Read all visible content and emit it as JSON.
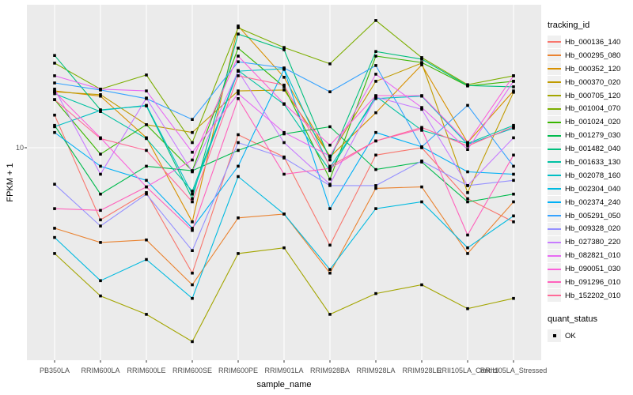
{
  "figure": {
    "y_axis": {
      "title": "FPKM + 1",
      "tick_label": "10"
    },
    "x_axis": {
      "title": "sample_name"
    },
    "legend": {
      "tracking_title": "tracking_id",
      "quant_title": "quant_status",
      "quant_items": [
        {
          "label": "OK",
          "marker": "black-square"
        }
      ]
    }
  },
  "chart_data": {
    "type": "line",
    "title": "",
    "xlabel": "sample_name",
    "ylabel": "FPKM + 1",
    "y_scale": "log10",
    "ylim": [
      1.05,
      50
    ],
    "y_ticks": [
      10
    ],
    "grid": "white major gridlines on gray panel",
    "legend_position": "right",
    "point_marker": {
      "shape": "square",
      "color": "#000000",
      "legend_label": "OK"
    },
    "panel_color": "#EBEBEB",
    "categories": [
      "PB350LA",
      "RRIM600LA",
      "RRIM600LE",
      "RRIM600SE",
      "RRIM600PE",
      "RRIM901LA",
      "RRIM928BA",
      "RRIM928LA",
      "RRIM928LE",
      "RRII105LA_Control",
      "RRII105LA_Stressed"
    ],
    "series": [
      {
        "name": "Hb_000136_140",
        "color": "#F8766D",
        "values": [
          14.5,
          4.4,
          6.0,
          2.4,
          11.6,
          9.0,
          3.3,
          9.2,
          10.0,
          5.6,
          4.3
        ]
      },
      {
        "name": "Hb_000295_080",
        "color": "#EA8331",
        "values": [
          4.0,
          3.4,
          3.5,
          2.1,
          4.5,
          4.7,
          2.4,
          6.3,
          6.4,
          3.0,
          5.4
        ]
      },
      {
        "name": "Hb_000352_120",
        "color": "#D89000",
        "values": [
          19.1,
          18.0,
          11.2,
          4.3,
          40.0,
          22.3,
          9.0,
          14.9,
          25.7,
          10.6,
          19.1
        ]
      },
      {
        "name": "Hb_000370_020",
        "color": "#C09B00",
        "values": [
          18.9,
          18.3,
          13.0,
          11.9,
          19.1,
          19.3,
          9.1,
          21.3,
          26.2,
          6.0,
          18.8
        ]
      },
      {
        "name": "Hb_000705_120",
        "color": "#A3A500",
        "values": [
          3.0,
          1.85,
          1.5,
          1.1,
          3.0,
          3.2,
          1.5,
          1.9,
          2.1,
          1.6,
          1.8
        ]
      },
      {
        "name": "Hb_001004_070",
        "color": "#7CAE00",
        "values": [
          26.2,
          19.5,
          22.9,
          10.6,
          39.2,
          31.3,
          26.0,
          42.6,
          27.9,
          20.5,
          22.7
        ]
      },
      {
        "name": "Hb_001024_020",
        "color": "#39B600",
        "values": [
          17.3,
          9.3,
          13.0,
          7.7,
          31.1,
          20.0,
          7.0,
          28.4,
          26.4,
          20.2,
          21.3
        ]
      },
      {
        "name": "Hb_001279_030",
        "color": "#00BB4E",
        "values": [
          12.9,
          5.9,
          8.1,
          7.7,
          9.7,
          11.7,
          12.7,
          7.8,
          8.5,
          5.4,
          5.9
        ]
      },
      {
        "name": "Hb_001482_040",
        "color": "#00BF7D",
        "values": [
          28.6,
          15.4,
          16.1,
          5.6,
          36.5,
          30.5,
          8.7,
          29.9,
          27.4,
          20.3,
          20.0
        ]
      },
      {
        "name": "Hb_001633_130",
        "color": "#00C1A3",
        "values": [
          18.5,
          15.1,
          11.1,
          6.1,
          24.1,
          16.4,
          7.7,
          18.0,
          12.2,
          10.5,
          12.9
        ]
      },
      {
        "name": "Hb_002078_160",
        "color": "#00BFC4",
        "values": [
          12.7,
          15.3,
          16.2,
          5.9,
          23.9,
          24.6,
          8.0,
          17.5,
          18.0,
          10.4,
          12.5
        ]
      },
      {
        "name": "Hb_002304_040",
        "color": "#00BAE0",
        "values": [
          3.6,
          2.2,
          2.8,
          1.8,
          7.2,
          4.7,
          2.5,
          5.0,
          5.4,
          3.2,
          4.6
        ]
      },
      {
        "name": "Hb_002374_240",
        "color": "#00B0F6",
        "values": [
          11.9,
          8.1,
          6.9,
          4.0,
          8.1,
          24.4,
          5.0,
          11.9,
          10.1,
          7.6,
          7.4
        ]
      },
      {
        "name": "Hb_005291_050",
        "color": "#35A2FF",
        "values": [
          20.9,
          19.3,
          17.5,
          13.8,
          26.6,
          24.8,
          18.9,
          25.5,
          10.1,
          16.2,
          8.1
        ]
      },
      {
        "name": "Hb_009328_020",
        "color": "#9590FF",
        "values": [
          6.6,
          4.1,
          5.9,
          3.1,
          10.6,
          8.9,
          6.5,
          6.5,
          8.6,
          6.5,
          6.9
        ]
      },
      {
        "name": "Hb_027380_220",
        "color": "#C77CFF",
        "values": [
          19.5,
          7.4,
          17.6,
          7.6,
          23.9,
          10.6,
          6.6,
          17.8,
          15.5,
          6.5,
          11.2
        ]
      },
      {
        "name": "Hb_082821_010",
        "color": "#E76BF3",
        "values": [
          22.7,
          19.5,
          19.1,
          9.5,
          18.5,
          11.9,
          9.1,
          23.1,
          15.8,
          9.8,
          21.3
        ]
      },
      {
        "name": "Hb_090051_030",
        "color": "#FA62DB",
        "values": [
          18.9,
          11.2,
          6.4,
          8.7,
          28.4,
          16.5,
          10.3,
          18.1,
          18.1,
          10.6,
          22.7
        ]
      },
      {
        "name": "Hb_091296_010",
        "color": "#FF62BC",
        "values": [
          5.0,
          4.9,
          6.4,
          3.9,
          17.5,
          7.4,
          7.9,
          10.8,
          12.4,
          3.7,
          9.2
        ]
      },
      {
        "name": "Hb_152202_010",
        "color": "#FF6A98",
        "values": [
          17.3,
          11.1,
          9.7,
          5.4,
          22.7,
          20.4,
          8.1,
          10.8,
          12.6,
          10.2,
          12.7
        ]
      }
    ]
  }
}
